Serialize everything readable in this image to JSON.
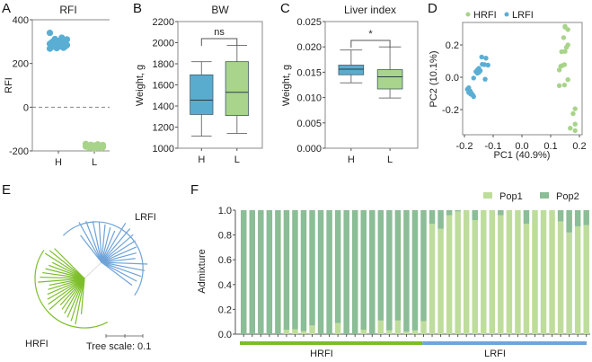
{
  "colors": {
    "blue": "#5aaed4",
    "blue_box": "#5aaccf",
    "green": "#a8d48a",
    "green_box": "#a9d48c",
    "pop1": "#bedd9c",
    "pop2": "#8bbd96",
    "hrfi_bar": "#7dbb2a",
    "lrfi_bar": "#6fa5d8",
    "tree_blue": "#6fa3d8",
    "tree_green": "#7dbf2a",
    "axis": "#888888"
  },
  "chart_data": [
    {
      "id": "A",
      "panel_label": "A",
      "type": "scatter",
      "title": "RFI",
      "xlabel": "",
      "ylabel": "RFI",
      "categories": [
        "H",
        "L"
      ],
      "ylim": [
        -200,
        400
      ],
      "yticks": [
        400,
        200,
        0,
        -200
      ],
      "reference_line": 0,
      "series": [
        {
          "name": "H",
          "values": [
            340,
            318,
            312,
            310,
            305,
            302,
            300,
            298,
            296,
            294,
            292,
            290,
            288,
            286,
            284,
            282,
            280,
            278,
            276,
            275,
            272,
            270,
            268
          ]
        },
        {
          "name": "L",
          "values": [
            -168,
            -170,
            -172,
            -173,
            -174,
            -175,
            -176,
            -177,
            -178,
            -179,
            -180,
            -180,
            -181,
            -182,
            -183,
            -184,
            -185,
            -186,
            -188
          ]
        }
      ]
    },
    {
      "id": "B",
      "panel_label": "B",
      "type": "box",
      "title": "BW",
      "ylabel": "Weight, g",
      "categories": [
        "H",
        "L"
      ],
      "ylim": [
        1000,
        2200
      ],
      "yticks": [
        1000,
        1200,
        1400,
        1600,
        1800,
        2000,
        2200
      ],
      "boxes": [
        {
          "name": "H",
          "min": 1115,
          "q1": 1320,
          "median": 1455,
          "q3": 1695,
          "max": 1820
        },
        {
          "name": "L",
          "min": 1140,
          "q1": 1310,
          "median": 1530,
          "q3": 1820,
          "max": 1975
        }
      ],
      "significance": "ns"
    },
    {
      "id": "C",
      "panel_label": "C",
      "type": "box",
      "title": "Liver index",
      "ylabel": "Weight, g",
      "categories": [
        "H",
        "L"
      ],
      "ylim": [
        0,
        0.025
      ],
      "yticks": [
        "0.000",
        "0.005",
        "0.010",
        "0.015",
        "0.020",
        "0.025"
      ],
      "boxes": [
        {
          "name": "H",
          "min": 0.0129,
          "q1": 0.0145,
          "median": 0.0156,
          "q3": 0.0164,
          "max": 0.0194
        },
        {
          "name": "L",
          "min": 0.0099,
          "q1": 0.0117,
          "median": 0.0141,
          "q3": 0.0155,
          "max": 0.02
        }
      ],
      "significance": "*"
    },
    {
      "id": "D",
      "panel_label": "D",
      "type": "scatter",
      "xlabel": "PC1 (40.9%)",
      "ylabel": "PC2 (10.1%)",
      "xlim": [
        -0.2,
        0.2
      ],
      "ylim": [
        -0.35,
        0.33
      ],
      "xticks": [
        "-0.2",
        "-0.1",
        "0.0",
        "0.1",
        "0.2"
      ],
      "yticks": [
        "0.2",
        "0.0",
        "-0.2"
      ],
      "legend": [
        "HRFI",
        "LRFI"
      ],
      "legend_position": "top",
      "series": [
        {
          "name": "HRFI",
          "points": [
            [
              0.15,
              0.31
            ],
            [
              0.16,
              0.295
            ],
            [
              0.145,
              0.245
            ],
            [
              0.16,
              0.2
            ],
            [
              0.155,
              0.185
            ],
            [
              0.15,
              0.16
            ],
            [
              0.138,
              0.158
            ],
            [
              0.148,
              0.078
            ],
            [
              0.14,
              0.072
            ],
            [
              0.135,
              0.068
            ],
            [
              0.13,
              0.045
            ],
            [
              0.16,
              -0.015
            ],
            [
              0.148,
              -0.048
            ],
            [
              0.13,
              -0.052
            ],
            [
              0.185,
              -0.195
            ],
            [
              0.178,
              -0.225
            ],
            [
              0.185,
              -0.29
            ],
            [
              0.168,
              -0.315
            ],
            [
              0.185,
              -0.33
            ],
            [
              0.15,
              0.315
            ]
          ]
        },
        {
          "name": "LRFI",
          "points": [
            [
              -0.14,
              0.125
            ],
            [
              -0.125,
              0.118
            ],
            [
              -0.138,
              0.08
            ],
            [
              -0.13,
              0.078
            ],
            [
              -0.118,
              0.075
            ],
            [
              -0.15,
              0.055
            ],
            [
              -0.155,
              0.045
            ],
            [
              -0.16,
              0.035
            ],
            [
              -0.15,
              0.03
            ],
            [
              -0.145,
              0.04
            ],
            [
              -0.155,
              0.025
            ],
            [
              -0.168,
              -0.005
            ],
            [
              -0.128,
              -0.012
            ],
            [
              -0.185,
              -0.065
            ],
            [
              -0.19,
              -0.075
            ],
            [
              -0.18,
              -0.085
            ],
            [
              -0.185,
              -0.095
            ],
            [
              -0.178,
              -0.105
            ],
            [
              -0.17,
              -0.112
            ],
            [
              -0.168,
              -0.12
            ],
            [
              -0.175,
              -0.1
            ]
          ]
        }
      ]
    },
    {
      "id": "E",
      "panel_label": "E",
      "type": "tree",
      "clades": [
        {
          "name": "LRFI",
          "leaves": 20
        },
        {
          "name": "HRFI",
          "leaves": 22
        }
      ],
      "scale_label": "Tree scale: 0.1"
    },
    {
      "id": "F",
      "panel_label": "F",
      "type": "bar",
      "stacked": true,
      "ylabel": "Admixture",
      "ylim": [
        0,
        1
      ],
      "yticks": [
        "0.0",
        "0.2",
        "0.4",
        "0.6",
        "0.8",
        "1.0"
      ],
      "legend": [
        "Pop1",
        "Pop2"
      ],
      "legend_position": "top-right",
      "groups": [
        {
          "name": "HRFI",
          "count": 21
        },
        {
          "name": "LRFI",
          "count": 20
        }
      ],
      "series": [
        {
          "name": "Pop1",
          "values": [
            0.0,
            0.0,
            0.0,
            0.0,
            0.0,
            0.035,
            0.04,
            0.025,
            0.07,
            0.0,
            0.0,
            0.09,
            0.0,
            0.0,
            0.035,
            0.0,
            0.11,
            0.03,
            0.11,
            0.02,
            0.03,
            0.105,
            0.89,
            0.85,
            0.96,
            0.99,
            1.0,
            0.92,
            1.0,
            1.0,
            0.96,
            1.0,
            1.0,
            0.89,
            1.0,
            1.0,
            1.0,
            0.91,
            0.82,
            0.87,
            0.88
          ]
        },
        {
          "name": "Pop2",
          "values": [
            1.0,
            1.0,
            1.0,
            1.0,
            1.0,
            0.965,
            0.96,
            0.975,
            0.93,
            1.0,
            1.0,
            0.91,
            1.0,
            1.0,
            0.965,
            1.0,
            0.89,
            0.97,
            0.89,
            0.98,
            0.97,
            0.895,
            0.11,
            0.15,
            0.04,
            0.01,
            0.0,
            0.08,
            0.0,
            0.0,
            0.04,
            0.0,
            0.0,
            0.11,
            0.0,
            0.0,
            0.0,
            0.09,
            0.18,
            0.13,
            0.12
          ]
        }
      ]
    }
  ]
}
